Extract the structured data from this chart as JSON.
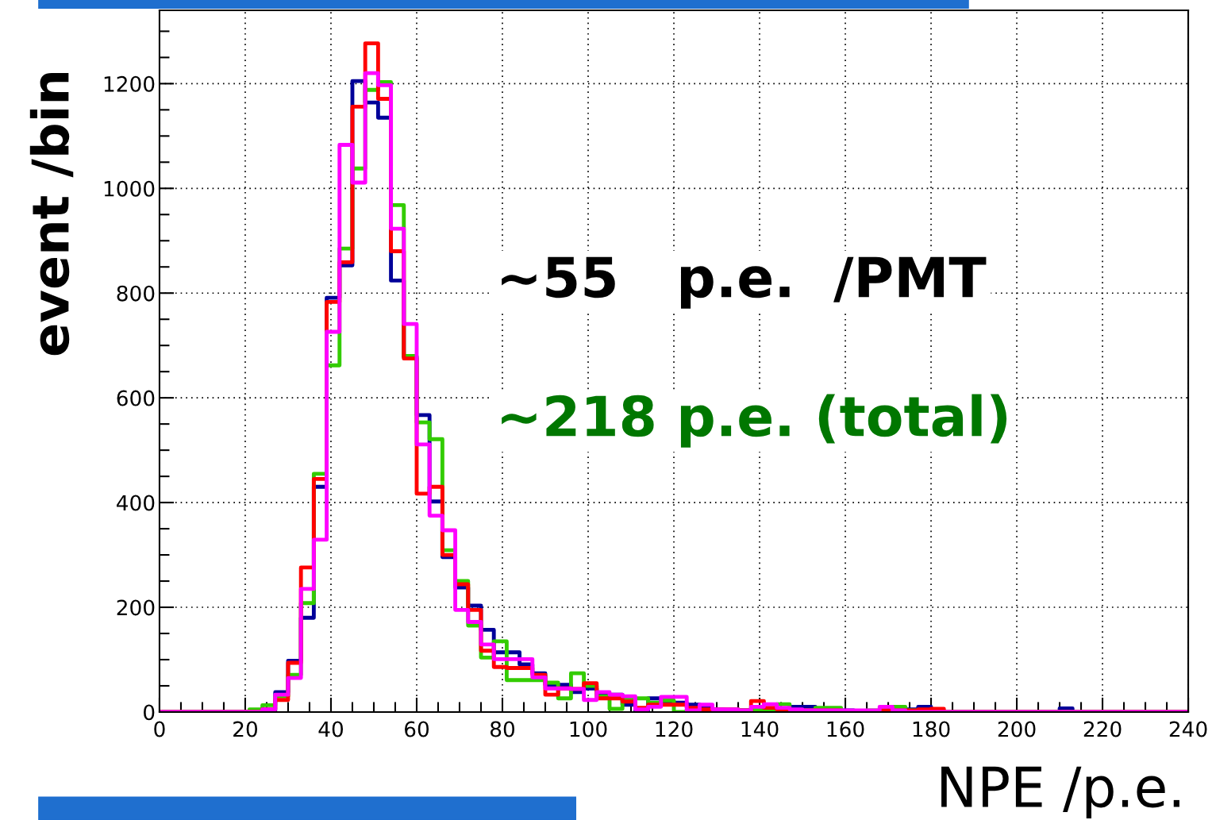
{
  "chart_data": {
    "type": "histogram",
    "xlabel": "NPE /p.e.",
    "ylabel": "event /bin",
    "annotations": [
      "∼55   p.e.  /PMT",
      "∼218 p.e. (total)"
    ],
    "bins": [
      0,
      3,
      6,
      9,
      12,
      15,
      18,
      21,
      24,
      27,
      30,
      33,
      36,
      39,
      42,
      45,
      48,
      51,
      54,
      57,
      60,
      63,
      66,
      69,
      72,
      75,
      78,
      81,
      84,
      87,
      90,
      93,
      96,
      99,
      102,
      105,
      108,
      111,
      114,
      117,
      120,
      123,
      126,
      129,
      132,
      135,
      138,
      141,
      144,
      147,
      150,
      153,
      156,
      159,
      162,
      165,
      168,
      171,
      174,
      177,
      180,
      183,
      186,
      189,
      192,
      195,
      198,
      201,
      204,
      207,
      210,
      213,
      216,
      219,
      222,
      225,
      228,
      231,
      234,
      237,
      240
    ],
    "series": [
      {
        "color": "#000099",
        "values": [
          0,
          0,
          0,
          0,
          0,
          0,
          0,
          0,
          2,
          38,
          98,
          180,
          430,
          791,
          853,
          1205,
          1164,
          1135,
          824,
          678,
          567,
          402,
          296,
          238,
          203,
          157,
          114,
          114,
          91,
          74,
          52,
          52,
          38,
          45,
          33,
          33,
          14,
          3,
          26,
          18,
          18,
          14,
          11,
          5,
          3,
          3,
          3,
          5,
          5,
          10,
          10,
          3,
          3,
          3,
          2,
          2,
          3,
          3,
          5,
          10,
          0,
          0,
          0,
          0,
          0,
          0,
          0,
          0,
          0,
          0,
          7,
          0,
          0,
          0,
          0,
          0,
          0,
          0,
          0,
          0
        ]
      },
      {
        "color": "#33cc00",
        "values": [
          0,
          0,
          0,
          0,
          0,
          0,
          0,
          5,
          13,
          30,
          71,
          208,
          455,
          662,
          885,
          1038,
          1188,
          1203,
          968,
          680,
          553,
          521,
          309,
          250,
          165,
          104,
          135,
          61,
          61,
          61,
          56,
          26,
          74,
          50,
          30,
          6,
          26,
          26,
          18,
          22,
          0,
          5,
          0,
          3,
          5,
          3,
          5,
          5,
          15,
          3,
          3,
          8,
          8,
          2,
          2,
          3,
          3,
          10,
          3,
          0,
          0,
          0,
          0,
          0,
          0,
          0,
          0,
          0,
          0,
          0,
          0,
          0,
          0,
          0,
          0,
          0,
          0,
          0,
          0,
          0
        ]
      },
      {
        "color": "#ff0000",
        "values": [
          0,
          0,
          0,
          0,
          0,
          0,
          0,
          0,
          5,
          23,
          94,
          276,
          445,
          783,
          859,
          1156,
          1277,
          1171,
          880,
          675,
          417,
          430,
          300,
          244,
          195,
          117,
          86,
          84,
          84,
          71,
          33,
          45,
          44,
          55,
          26,
          26,
          20,
          8,
          14,
          14,
          14,
          8,
          5,
          5,
          5,
          3,
          21,
          8,
          5,
          3,
          3,
          3,
          3,
          2,
          2,
          2,
          3,
          3,
          3,
          5,
          6,
          0,
          0,
          0,
          0,
          0,
          0,
          0,
          0,
          0,
          0,
          0,
          0,
          0,
          0,
          0,
          0,
          0,
          0,
          0
        ]
      },
      {
        "color": "#ff00ff",
        "values": [
          0,
          0,
          0,
          0,
          0,
          0,
          0,
          0,
          5,
          33,
          65,
          235,
          329,
          726,
          1083,
          1011,
          1220,
          1197,
          923,
          741,
          511,
          375,
          347,
          195,
          172,
          129,
          101,
          101,
          101,
          66,
          45,
          45,
          44,
          23,
          38,
          33,
          30,
          5,
          10,
          29,
          29,
          3,
          14,
          5,
          5,
          3,
          10,
          15,
          8,
          5,
          3,
          3,
          3,
          3,
          3,
          3,
          10,
          3,
          0,
          0,
          0,
          0,
          0,
          0,
          0,
          0,
          0,
          0,
          0,
          0,
          0,
          0,
          0,
          0,
          0,
          0,
          0,
          0,
          0,
          0
        ]
      }
    ],
    "xlim": [
      0,
      240
    ],
    "xticks": [
      0,
      20,
      40,
      60,
      80,
      100,
      120,
      140,
      160,
      180,
      200,
      220,
      240
    ],
    "ylim": [
      0,
      1340
    ],
    "yticks": [
      0,
      200,
      400,
      600,
      800,
      1000,
      1200
    ],
    "grid": true
  }
}
